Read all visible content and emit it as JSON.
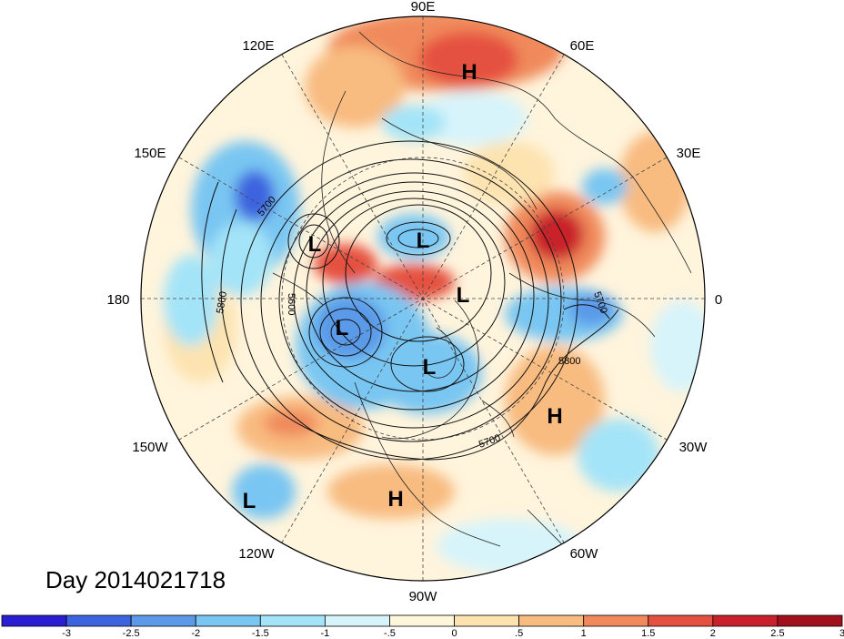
{
  "title": "Day 2014021718",
  "longitude_labels": [
    {
      "key": "90E",
      "text": "90E"
    },
    {
      "key": "120E",
      "text": "120E"
    },
    {
      "key": "60E",
      "text": "60E"
    },
    {
      "key": "150E",
      "text": "150E"
    },
    {
      "key": "30E",
      "text": "30E"
    },
    {
      "key": "180",
      "text": "180"
    },
    {
      "key": "0",
      "text": "0"
    },
    {
      "key": "150W",
      "text": "150W"
    },
    {
      "key": "30W",
      "text": "30W"
    },
    {
      "key": "120W",
      "text": "120W"
    },
    {
      "key": "60W",
      "text": "60W"
    },
    {
      "key": "90W",
      "text": "90W"
    }
  ],
  "pressure_centers": [
    {
      "key": "h-russia",
      "text": "H"
    },
    {
      "key": "l-east-siberia",
      "text": "L"
    },
    {
      "key": "l-siberia",
      "text": "L"
    },
    {
      "key": "l-arctic",
      "text": "L"
    },
    {
      "key": "l-alaska",
      "text": "L"
    },
    {
      "key": "l-canada",
      "text": "L"
    },
    {
      "key": "h-atlantic",
      "text": "H"
    },
    {
      "key": "h-gulf",
      "text": "H"
    },
    {
      "key": "l-pacific",
      "text": "L"
    }
  ],
  "contour_labels": [
    {
      "key": "c5700-pacific",
      "text": "5700"
    },
    {
      "key": "c5800-pacific",
      "text": "5800"
    },
    {
      "key": "c5600",
      "text": "5600"
    },
    {
      "key": "c5700-europe",
      "text": "5700"
    },
    {
      "key": "c5800-atlantic",
      "text": "5800"
    },
    {
      "key": "c5700-atlantic",
      "text": "5700"
    }
  ],
  "colorbar": {
    "ticks": [
      "-3",
      "-2.5",
      "-2",
      "-1.5",
      "-1",
      "-.5",
      "0",
      ".5",
      "1",
      "1.5",
      "2",
      "2.5",
      "3"
    ],
    "colors": [
      "#2a1fd0",
      "#3e63df",
      "#5a9ae8",
      "#79c6f2",
      "#a4e4f8",
      "#d7f4fb",
      "#fff7dc",
      "#fde3b0",
      "#f8bb80",
      "#f08a5c",
      "#e55141",
      "#c9212b",
      "#a0101d"
    ]
  }
}
